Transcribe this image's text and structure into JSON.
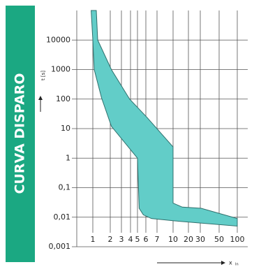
{
  "chart_data": {
    "type": "area",
    "side_title": "CURVA DISPARO",
    "ylabel": "t [s]",
    "xlabel": "x",
    "xlabel_sub": "In",
    "log_y": true,
    "grid": true,
    "color": "#62cdc8",
    "side_color": "#1ba882",
    "ylim": [
      0.001,
      100000
    ],
    "yticks": [
      {
        "value": 0.001,
        "label": "0,001"
      },
      {
        "value": 0.01,
        "label": "0,01"
      },
      {
        "value": 0.1,
        "label": "0,1"
      },
      1,
      10,
      100,
      1000,
      10000
    ],
    "xlim": [
      0.5,
      130
    ],
    "xticks": [
      1,
      2,
      3,
      4,
      5,
      6,
      7,
      10,
      20,
      30,
      50,
      100
    ],
    "band": {
      "upper": {
        "x": [
          1.2,
          1.28,
          2.1,
          3.9,
          6.1,
          10,
          10,
          16,
          31,
          100
        ],
        "values": [
          100000,
          10000,
          1000,
          100,
          24,
          2.4,
          0.03,
          0.022,
          0.02,
          0.009
        ]
      },
      "lower": {
        "x": [
          100,
          11,
          6.5,
          5.7,
          5.2,
          5,
          2.1,
          1.5,
          1.08,
          1,
          0.96
        ],
        "values": [
          0.005,
          0.0075,
          0.009,
          0.012,
          0.02,
          1,
          12,
          110,
          1000,
          10000,
          100000
        ]
      }
    }
  }
}
